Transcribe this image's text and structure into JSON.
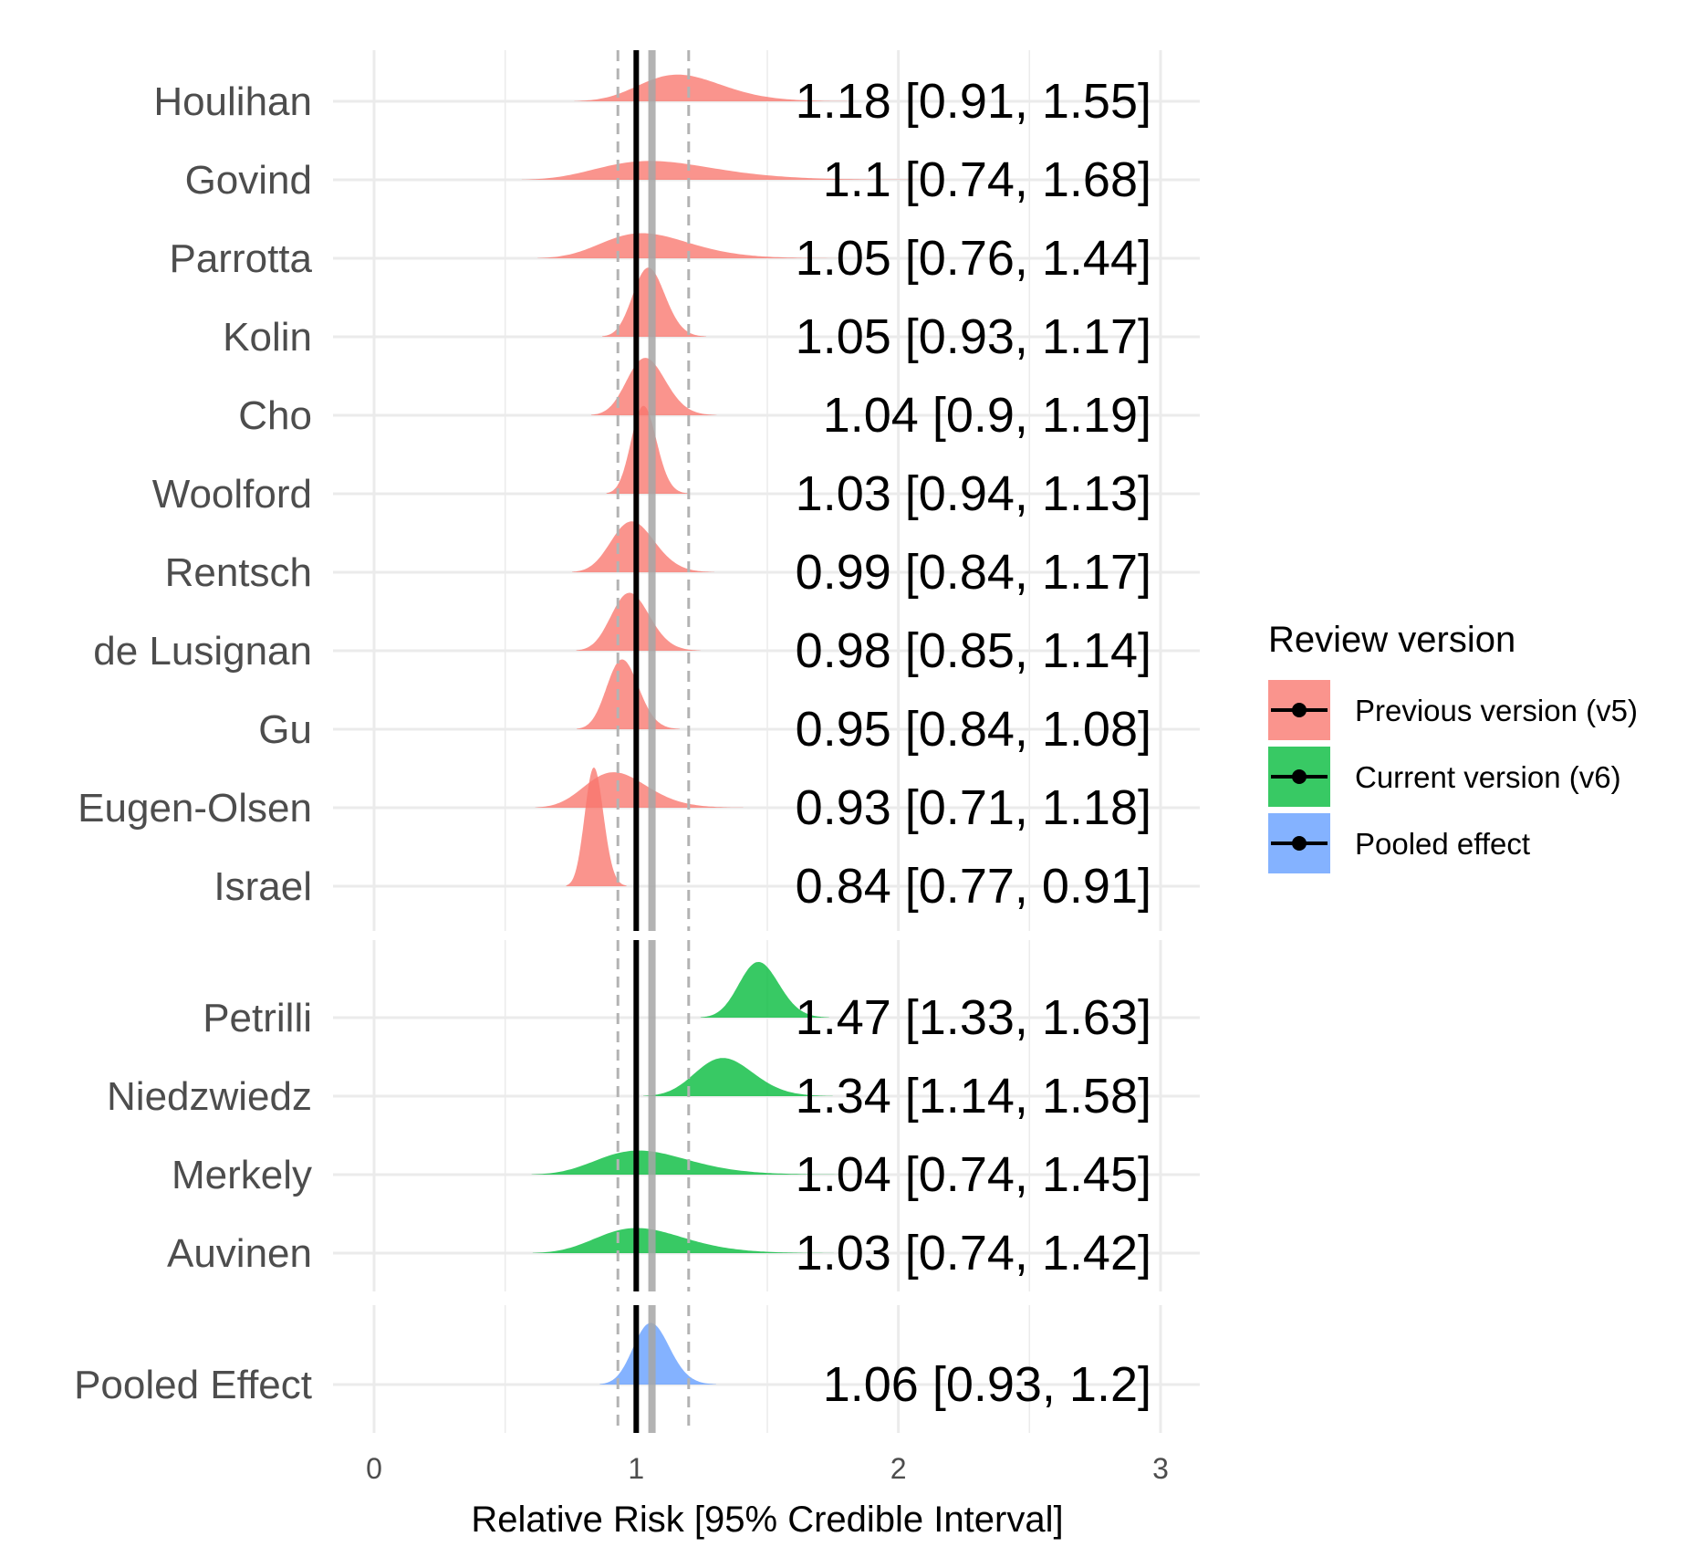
{
  "chart_data": {
    "type": "ridgeline",
    "xlabel": "Relative Risk [95% Credible Interval]",
    "xlim": [
      0,
      3
    ],
    "x_ticks": [
      "0",
      "1",
      "2",
      "3"
    ],
    "reference_line": 1,
    "pooled_estimate_line": 1.06,
    "pooled_interval_lines": [
      0.93,
      1.2
    ],
    "grid": true,
    "legend": {
      "title": "Review version",
      "placement": "right",
      "entries": [
        {
          "label": "Previous version (v5)",
          "color": "#F8766D"
        },
        {
          "label": "Current version (v6)",
          "color": "#00BA38"
        },
        {
          "label": "Pooled effect",
          "color": "#619CFF"
        }
      ]
    },
    "groups": [
      {
        "version": "Previous version (v5)",
        "color": "#F8766D",
        "studies": [
          {
            "name": "Houlihan",
            "estimate": 1.18,
            "lower": 0.91,
            "upper": 1.55,
            "label": "1.18 [0.91, 1.55]"
          },
          {
            "name": "Govind",
            "estimate": 1.1,
            "lower": 0.74,
            "upper": 1.68,
            "label": "1.1 [0.74, 1.68]"
          },
          {
            "name": "Parrotta",
            "estimate": 1.05,
            "lower": 0.76,
            "upper": 1.44,
            "label": "1.05 [0.76, 1.44]"
          },
          {
            "name": "Kolin",
            "estimate": 1.05,
            "lower": 0.93,
            "upper": 1.17,
            "label": "1.05 [0.93, 1.17]"
          },
          {
            "name": "Cho",
            "estimate": 1.04,
            "lower": 0.9,
            "upper": 1.19,
            "label": "1.04 [0.9, 1.19]"
          },
          {
            "name": "Woolford",
            "estimate": 1.03,
            "lower": 0.94,
            "upper": 1.13,
            "label": "1.03 [0.94, 1.13]"
          },
          {
            "name": "Rentsch",
            "estimate": 0.99,
            "lower": 0.84,
            "upper": 1.17,
            "label": "0.99 [0.84, 1.17]"
          },
          {
            "name": "de Lusignan",
            "estimate": 0.98,
            "lower": 0.85,
            "upper": 1.14,
            "label": "0.98 [0.85, 1.14]"
          },
          {
            "name": "Gu",
            "estimate": 0.95,
            "lower": 0.84,
            "upper": 1.08,
            "label": "0.95 [0.84, 1.08]"
          },
          {
            "name": "Eugen-Olsen",
            "estimate": 0.93,
            "lower": 0.71,
            "upper": 1.18,
            "label": "0.93 [0.71, 1.18]"
          },
          {
            "name": "Israel",
            "estimate": 0.84,
            "lower": 0.77,
            "upper": 0.91,
            "label": "0.84 [0.77, 0.91]"
          }
        ]
      },
      {
        "version": "Current version (v6)",
        "color": "#00BA38",
        "studies": [
          {
            "name": "Petrilli",
            "estimate": 1.47,
            "lower": 1.33,
            "upper": 1.63,
            "label": "1.47 [1.33, 1.63]"
          },
          {
            "name": "Niedzwiedz",
            "estimate": 1.34,
            "lower": 1.14,
            "upper": 1.58,
            "label": "1.34 [1.14, 1.58]"
          },
          {
            "name": "Merkely",
            "estimate": 1.04,
            "lower": 0.74,
            "upper": 1.45,
            "label": "1.04 [0.74, 1.45]"
          },
          {
            "name": "Auvinen",
            "estimate": 1.03,
            "lower": 0.74,
            "upper": 1.42,
            "label": "1.03 [0.74, 1.42]"
          }
        ]
      },
      {
        "version": "Pooled effect",
        "color": "#619CFF",
        "studies": [
          {
            "name": "Pooled Effect",
            "estimate": 1.06,
            "lower": 0.93,
            "upper": 1.2,
            "label": "1.06 [0.93, 1.2]"
          }
        ]
      }
    ]
  }
}
